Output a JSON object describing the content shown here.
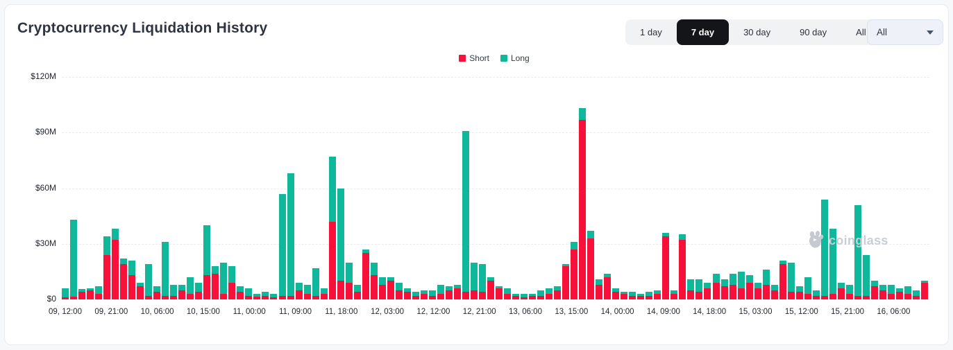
{
  "card": {
    "title": "Cryptocurrency Liquidation History"
  },
  "controls": {
    "ranges": [
      {
        "label": "1 day",
        "active": false
      },
      {
        "label": "7 day",
        "active": true
      },
      {
        "label": "30 day",
        "active": false
      },
      {
        "label": "90 day",
        "active": false
      },
      {
        "label": "All",
        "active": false
      }
    ],
    "dropdown": {
      "value": "All"
    }
  },
  "legend": [
    {
      "label": "Short",
      "color": "#f7103a"
    },
    {
      "label": "Long",
      "color": "#0fb79b"
    }
  ],
  "colors": {
    "short": "#f7103a",
    "long": "#0fb79b",
    "active_button_bg": "#141519",
    "grid": "#e9eaec",
    "watermark": "#c9ced6"
  },
  "watermark": {
    "text": "coinglass"
  },
  "chart_data": {
    "type": "bar",
    "stacked": true,
    "title": "Cryptocurrency Liquidation History",
    "unit": "$M",
    "ylim": [
      0,
      120
    ],
    "grid": "dashed-horizontal",
    "legend_position": "top-center",
    "y_ticks": [
      {
        "label": "$0",
        "value": 0
      },
      {
        "label": "$30M",
        "value": 30
      },
      {
        "label": "$60M",
        "value": 60
      },
      {
        "label": "$90M",
        "value": 90
      },
      {
        "label": "$120M",
        "value": 120
      }
    ],
    "x_labels": [
      "09, 12:00",
      "09, 21:00",
      "10, 06:00",
      "10, 15:00",
      "11, 00:00",
      "11, 09:00",
      "11, 18:00",
      "12, 03:00",
      "12, 12:00",
      "12, 21:00",
      "13, 06:00",
      "13, 15:00",
      "14, 00:00",
      "14, 09:00",
      "14, 18:00",
      "15, 03:00",
      "15, 12:00",
      "15, 21:00",
      "16, 06:00"
    ],
    "series": [
      {
        "name": "Short",
        "values": [
          1,
          1.5,
          4,
          5,
          3,
          24,
          32,
          19,
          13,
          7,
          2,
          4,
          2,
          2,
          5,
          3,
          4,
          13,
          14,
          3,
          9,
          4,
          2,
          1.5,
          2,
          1,
          2,
          2,
          5,
          3,
          2,
          3,
          42,
          10,
          9,
          4,
          25,
          13,
          8,
          10,
          5,
          4,
          2,
          3,
          2,
          3,
          5,
          6,
          4,
          5,
          4,
          10,
          6,
          3,
          2,
          1,
          2,
          2,
          3,
          5,
          18,
          27,
          97,
          33,
          8,
          12,
          4,
          3,
          2,
          2,
          2,
          3,
          34,
          3,
          32,
          5,
          4,
          6,
          9,
          7,
          8,
          6,
          9,
          6,
          8,
          5,
          19,
          4,
          4,
          3,
          2,
          2,
          3,
          6,
          3,
          2,
          2,
          7,
          5,
          3,
          4,
          3,
          2,
          9
        ]
      },
      {
        "name": "Long",
        "values": [
          5,
          41.5,
          1.5,
          1,
          4,
          10,
          6,
          3,
          8,
          2,
          17,
          3,
          29,
          6,
          3,
          9,
          5,
          27,
          4,
          17,
          9,
          3,
          4,
          1.5,
          2,
          2,
          55,
          66,
          4,
          5,
          15,
          3,
          35,
          50,
          11,
          4,
          2,
          7,
          4,
          2,
          4,
          2,
          2,
          2,
          3,
          5,
          2,
          2,
          87,
          15,
          15,
          2,
          1,
          3,
          1,
          2,
          1,
          3,
          3,
          2,
          1,
          4,
          6,
          4,
          3,
          2,
          2,
          1,
          2,
          1,
          2,
          2,
          2,
          2,
          3,
          6,
          7,
          3,
          5,
          4,
          6,
          9,
          4,
          3,
          8,
          3,
          2,
          16,
          3,
          9,
          3,
          52,
          35,
          3,
          5,
          49,
          22,
          3,
          3,
          5,
          2,
          4,
          3,
          1
        ]
      }
    ]
  }
}
